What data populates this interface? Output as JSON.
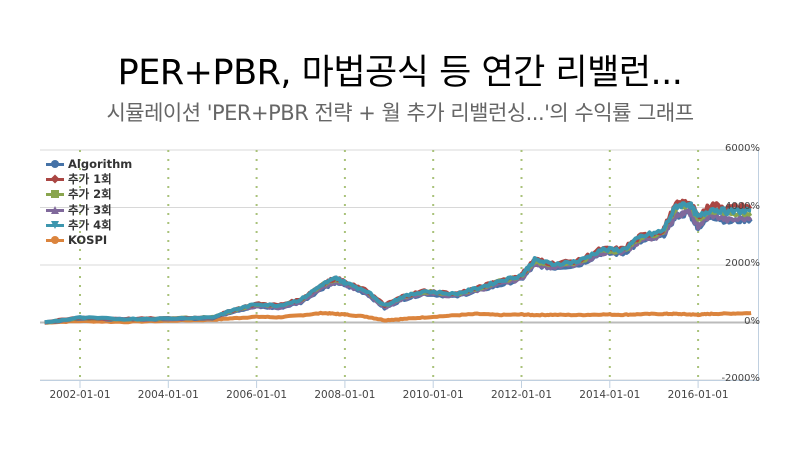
{
  "header": {
    "title": "PER+PBR, 마법공식 등 연간 리밸런...",
    "subtitle": "시뮬레이션 'PER+PBR 전략 + 월 추가 리밸런싱...'의 수익률 그래프"
  },
  "legend": [
    {
      "label": "Algorithm",
      "color": "#4572a7",
      "marker": "circle"
    },
    {
      "label": "추가 1회",
      "color": "#aa4643",
      "marker": "diamond"
    },
    {
      "label": "추가 2회",
      "color": "#89a54e",
      "marker": "square"
    },
    {
      "label": "추가 3회",
      "color": "#80699b",
      "marker": "triangle"
    },
    {
      "label": "추가 4회",
      "color": "#3d96ae",
      "marker": "triangle-down"
    },
    {
      "label": "KOSPI",
      "color": "#db843d",
      "marker": "circle"
    }
  ],
  "axes": {
    "y_ticks": [
      "6000%",
      "4000%",
      "2000%",
      "0%",
      "-2000%"
    ],
    "x_ticks": [
      "2002-01-01",
      "2004-01-01",
      "2006-01-01",
      "2008-01-01",
      "2010-01-01",
      "2012-01-01",
      "2014-01-01",
      "2016-01-01"
    ]
  },
  "chart_data": {
    "type": "line",
    "title": "PER+PBR, 마법공식 등 연간 리밸런...",
    "subtitle": "시뮬레이션 'PER+PBR 전략 + 월 추가 리밸런싱...'의 수익률 그래프",
    "xlabel": "",
    "ylabel": "",
    "ylim": [
      -2000,
      6000
    ],
    "y_unit": "%",
    "grid": {
      "horizontal": true,
      "vertical_dotted": true
    },
    "legend_position": "top-left inside",
    "x": [
      2001.2,
      2002.0,
      2003.0,
      2004.0,
      2005.0,
      2005.5,
      2006.0,
      2006.5,
      2007.0,
      2007.5,
      2007.8,
      2008.0,
      2008.5,
      2008.9,
      2009.3,
      2009.8,
      2010.5,
      2011.0,
      2011.5,
      2012.0,
      2012.3,
      2012.7,
      2013.3,
      2013.8,
      2014.3,
      2014.7,
      2015.2,
      2015.5,
      2015.8,
      2016.0,
      2016.3,
      2016.7,
      2017.2
    ],
    "series": [
      {
        "name": "Algorithm",
        "values": [
          0,
          150,
          100,
          120,
          160,
          400,
          550,
          500,
          700,
          1200,
          1400,
          1300,
          1000,
          500,
          800,
          1000,
          900,
          1100,
          1300,
          1500,
          2000,
          1900,
          2000,
          2400,
          2400,
          2800,
          3000,
          3700,
          3800,
          3300,
          3700,
          3500,
          3600
        ]
      },
      {
        "name": "추가 1회",
        "values": [
          0,
          170,
          120,
          140,
          180,
          450,
          650,
          600,
          800,
          1350,
          1550,
          1400,
          1100,
          600,
          900,
          1100,
          1000,
          1200,
          1450,
          1650,
          2200,
          2050,
          2150,
          2550,
          2550,
          3000,
          3200,
          4100,
          4200,
          3700,
          4100,
          4000,
          4050
        ]
      },
      {
        "name": "추가 2회",
        "values": [
          0,
          165,
          115,
          135,
          175,
          440,
          630,
          580,
          780,
          1320,
          1520,
          1380,
          1080,
          580,
          880,
          1080,
          980,
          1180,
          1420,
          1620,
          2150,
          2000,
          2100,
          2500,
          2500,
          2950,
          3150,
          4000,
          4100,
          3600,
          3900,
          3800,
          3800
        ]
      },
      {
        "name": "추가 3회",
        "values": [
          0,
          155,
          105,
          125,
          165,
          410,
          570,
          520,
          720,
          1230,
          1430,
          1320,
          1020,
          520,
          820,
          1020,
          920,
          1120,
          1330,
          1530,
          2050,
          1920,
          2020,
          2430,
          2430,
          2850,
          3050,
          3750,
          3850,
          3350,
          3750,
          3550,
          3650
        ]
      },
      {
        "name": "추가 4회",
        "values": [
          0,
          170,
          120,
          140,
          180,
          450,
          640,
          590,
          790,
          1340,
          1540,
          1390,
          1090,
          590,
          890,
          1090,
          990,
          1190,
          1440,
          1640,
          2180,
          2030,
          2130,
          2530,
          2530,
          2980,
          3180,
          4050,
          4150,
          3650,
          3950,
          3850,
          3900
        ]
      },
      {
        "name": "KOSPI",
        "values": [
          0,
          50,
          20,
          60,
          100,
          150,
          200,
          180,
          250,
          330,
          300,
          280,
          200,
          80,
          120,
          180,
          250,
          300,
          260,
          280,
          260,
          270,
          260,
          280,
          270,
          290,
          300,
          300,
          280,
          270,
          300,
          310,
          330
        ]
      }
    ]
  }
}
